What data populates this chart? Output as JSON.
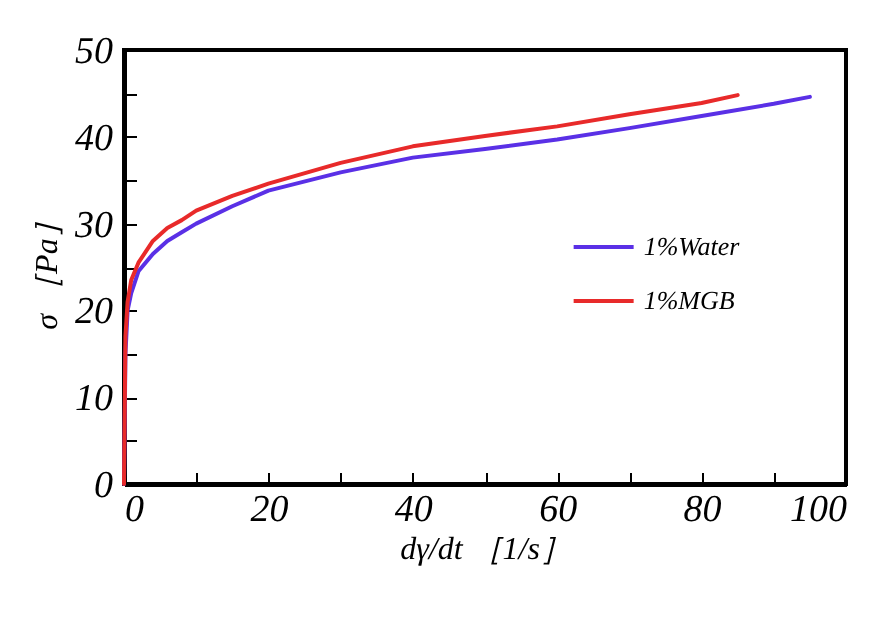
{
  "chart_data": {
    "type": "line",
    "xlabel": "dγ/dt ［1/s］",
    "ylabel": "σ ［Pa］",
    "xlim": [
      0,
      100
    ],
    "ylim": [
      0,
      50
    ],
    "xticks": [
      0,
      {
        "value": 10,
        "label": null
      },
      20,
      {
        "value": 30,
        "label": null
      },
      40,
      {
        "value": 50,
        "label": null
      },
      60,
      {
        "value": 70,
        "label": null
      },
      80,
      {
        "value": 90,
        "label": null
      },
      100
    ],
    "yticks": [
      0,
      {
        "value": 5,
        "label": null
      },
      10,
      {
        "value": 15,
        "label": null
      },
      20,
      {
        "value": 25,
        "label": null
      },
      30,
      {
        "value": 35,
        "label": null
      },
      40,
      {
        "value": 45,
        "label": null
      },
      50
    ],
    "grid": false,
    "legend": "right",
    "line_style": "solid",
    "marker": "none",
    "series": [
      {
        "name": "1%Water",
        "color": "#5a30e6",
        "x": [
          0,
          0.2,
          0.5,
          1,
          2,
          4,
          6,
          8,
          10,
          15,
          20,
          30,
          40,
          50,
          60,
          70,
          80,
          90,
          95
        ],
        "values": [
          0,
          15,
          20,
          22,
          24.5,
          26.5,
          28,
          29,
          30,
          32,
          33.8,
          35.9,
          37.6,
          38.6,
          39.7,
          41,
          42.4,
          43.8,
          44.6
        ]
      },
      {
        "name": "1%MGB",
        "color": "#e82a2a",
        "x": [
          0,
          0.2,
          0.5,
          1,
          2,
          4,
          6,
          8,
          10,
          15,
          20,
          30,
          40,
          50,
          60,
          70,
          80,
          85
        ],
        "values": [
          0,
          17,
          21,
          23.5,
          25.5,
          28,
          29.5,
          30.4,
          31.5,
          33.2,
          34.6,
          37,
          38.9,
          40.1,
          41.2,
          42.6,
          43.9,
          44.8
        ]
      }
    ]
  }
}
